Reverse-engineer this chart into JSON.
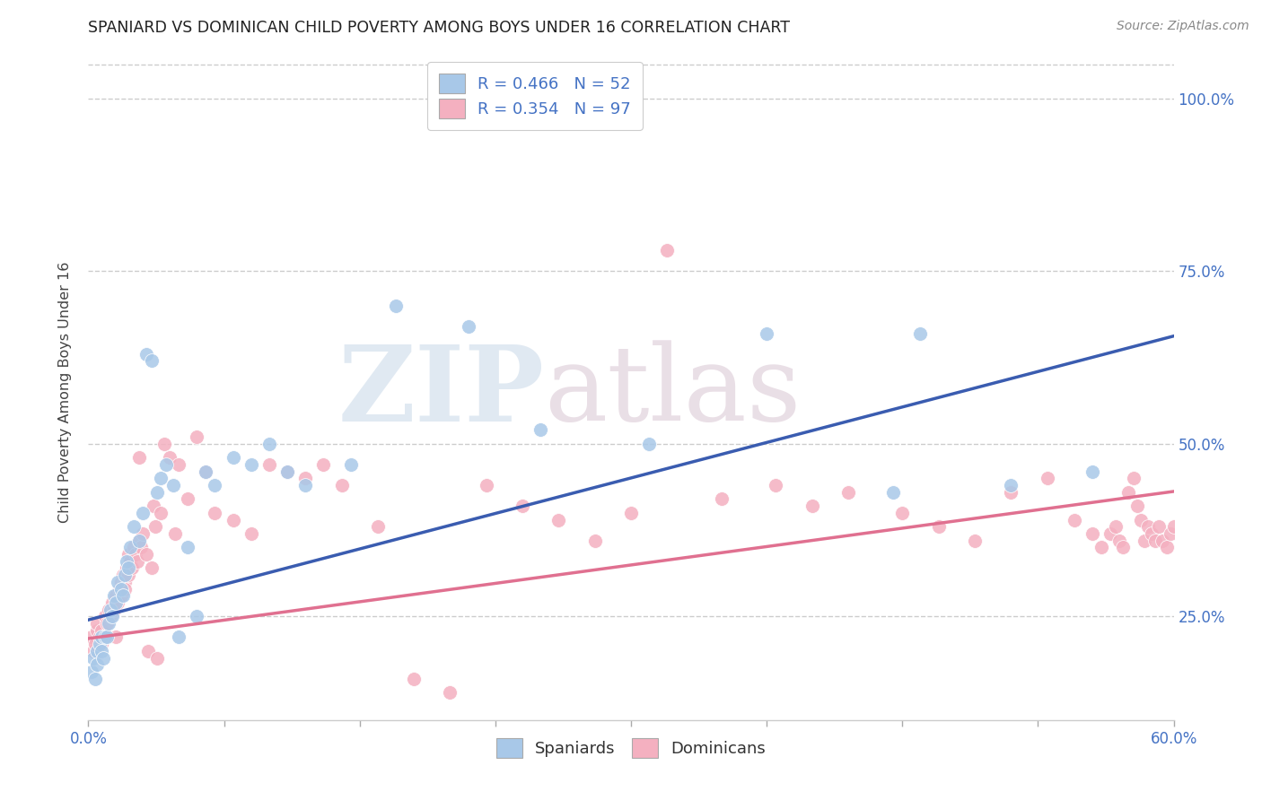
{
  "title": "SPANIARD VS DOMINICAN CHILD POVERTY AMONG BOYS UNDER 16 CORRELATION CHART",
  "source": "Source: ZipAtlas.com",
  "ylabel": "Child Poverty Among Boys Under 16",
  "ytick_labels": [
    "25.0%",
    "50.0%",
    "75.0%",
    "100.0%"
  ],
  "ytick_values": [
    0.25,
    0.5,
    0.75,
    1.0
  ],
  "xmin": 0.0,
  "xmax": 0.6,
  "ymin": 0.1,
  "ymax": 1.05,
  "watermark_zip": "ZIP",
  "watermark_atlas": "atlas",
  "blue_color": "#A8C8E8",
  "pink_color": "#F4B0C0",
  "blue_line_color": "#3A5CB0",
  "pink_line_color": "#E07090",
  "legend_label_blue": "R = 0.466   N = 52",
  "legend_label_pink": "R = 0.354   N = 97",
  "spaniard_label": "Spaniards",
  "dominican_label": "Dominicans",
  "blue_text_color": "#4472C4",
  "axis_tick_color": "#4472C4",
  "grid_color": "#CCCCCC",
  "title_color": "#222222",
  "source_color": "#888888",
  "blue_intercept": 0.245,
  "blue_slope": 0.685,
  "pink_intercept": 0.218,
  "pink_slope": 0.355,
  "spaniards_x": [
    0.002,
    0.003,
    0.004,
    0.005,
    0.005,
    0.006,
    0.007,
    0.007,
    0.008,
    0.009,
    0.01,
    0.011,
    0.012,
    0.013,
    0.014,
    0.015,
    0.016,
    0.018,
    0.019,
    0.02,
    0.021,
    0.022,
    0.023,
    0.025,
    0.028,
    0.03,
    0.032,
    0.035,
    0.038,
    0.04,
    0.043,
    0.047,
    0.05,
    0.055,
    0.06,
    0.065,
    0.07,
    0.08,
    0.09,
    0.1,
    0.11,
    0.12,
    0.145,
    0.17,
    0.21,
    0.25,
    0.31,
    0.375,
    0.445,
    0.46,
    0.51,
    0.555
  ],
  "spaniards_y": [
    0.17,
    0.19,
    0.16,
    0.2,
    0.18,
    0.21,
    0.2,
    0.22,
    0.19,
    0.22,
    0.22,
    0.24,
    0.26,
    0.25,
    0.28,
    0.27,
    0.3,
    0.29,
    0.28,
    0.31,
    0.33,
    0.32,
    0.35,
    0.38,
    0.36,
    0.4,
    0.63,
    0.62,
    0.43,
    0.45,
    0.47,
    0.44,
    0.22,
    0.35,
    0.25,
    0.46,
    0.44,
    0.48,
    0.47,
    0.5,
    0.46,
    0.44,
    0.47,
    0.7,
    0.67,
    0.52,
    0.5,
    0.66,
    0.43,
    0.66,
    0.44,
    0.46
  ],
  "dominicans_x": [
    0.002,
    0.003,
    0.004,
    0.005,
    0.005,
    0.006,
    0.007,
    0.007,
    0.008,
    0.009,
    0.01,
    0.01,
    0.011,
    0.012,
    0.013,
    0.014,
    0.015,
    0.015,
    0.016,
    0.017,
    0.018,
    0.018,
    0.019,
    0.02,
    0.02,
    0.021,
    0.022,
    0.022,
    0.023,
    0.024,
    0.025,
    0.026,
    0.027,
    0.028,
    0.028,
    0.029,
    0.03,
    0.032,
    0.033,
    0.035,
    0.036,
    0.037,
    0.038,
    0.04,
    0.042,
    0.045,
    0.048,
    0.05,
    0.055,
    0.06,
    0.065,
    0.07,
    0.08,
    0.09,
    0.1,
    0.11,
    0.12,
    0.13,
    0.14,
    0.16,
    0.18,
    0.2,
    0.22,
    0.24,
    0.26,
    0.28,
    0.3,
    0.32,
    0.35,
    0.38,
    0.4,
    0.42,
    0.45,
    0.47,
    0.49,
    0.51,
    0.53,
    0.545,
    0.555,
    0.56,
    0.565,
    0.568,
    0.57,
    0.572,
    0.575,
    0.578,
    0.58,
    0.582,
    0.584,
    0.586,
    0.588,
    0.59,
    0.592,
    0.594,
    0.596,
    0.598,
    0.6
  ],
  "dominicans_y": [
    0.22,
    0.2,
    0.21,
    0.23,
    0.24,
    0.22,
    0.21,
    0.23,
    0.22,
    0.25,
    0.24,
    0.22,
    0.26,
    0.25,
    0.27,
    0.26,
    0.28,
    0.22,
    0.27,
    0.29,
    0.28,
    0.3,
    0.31,
    0.3,
    0.29,
    0.32,
    0.31,
    0.34,
    0.33,
    0.32,
    0.35,
    0.34,
    0.33,
    0.36,
    0.48,
    0.35,
    0.37,
    0.34,
    0.2,
    0.32,
    0.41,
    0.38,
    0.19,
    0.4,
    0.5,
    0.48,
    0.37,
    0.47,
    0.42,
    0.51,
    0.46,
    0.4,
    0.39,
    0.37,
    0.47,
    0.46,
    0.45,
    0.47,
    0.44,
    0.38,
    0.16,
    0.14,
    0.44,
    0.41,
    0.39,
    0.36,
    0.4,
    0.78,
    0.42,
    0.44,
    0.41,
    0.43,
    0.4,
    0.38,
    0.36,
    0.43,
    0.45,
    0.39,
    0.37,
    0.35,
    0.37,
    0.38,
    0.36,
    0.35,
    0.43,
    0.45,
    0.41,
    0.39,
    0.36,
    0.38,
    0.37,
    0.36,
    0.38,
    0.36,
    0.35,
    0.37,
    0.38
  ]
}
